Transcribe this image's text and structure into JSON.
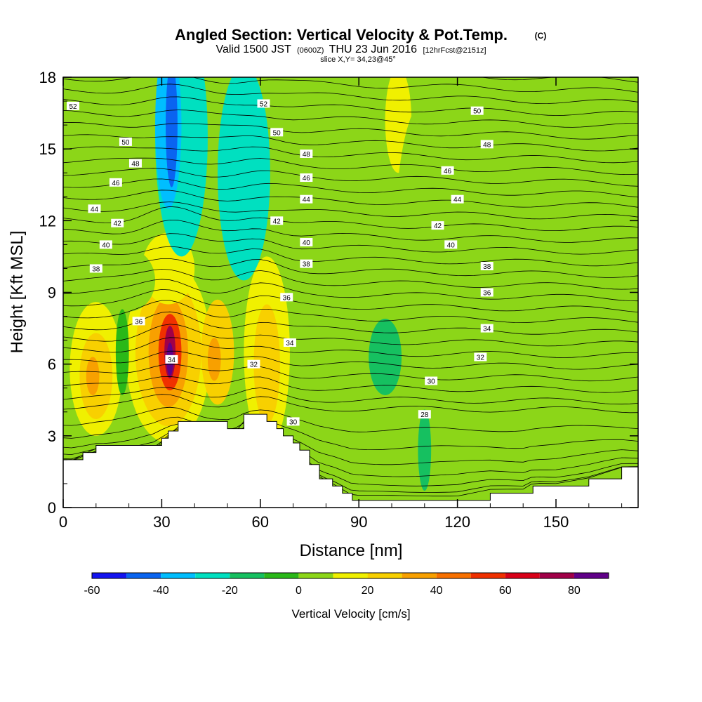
{
  "title": {
    "main": "Angled Section: Vertical Velocity & Pot.Temp.",
    "copyright_mark": "(C)",
    "valid_prefix": "Valid 1500 JST",
    "valid_utc": "(0600Z)",
    "valid_date": "THU 23 Jun 2016",
    "forecast": "[12hrFcst@2151z]",
    "slice": "slice X,Y= 34,23@45°"
  },
  "chart_data": {
    "type": "heatmap",
    "xlabel": "Distance [nm]",
    "ylabel": "Height [Kft MSL]",
    "xlim": [
      0,
      175
    ],
    "ylim": [
      0,
      18
    ],
    "x_ticks": [
      "0",
      "30",
      "60",
      "90",
      "120",
      "150"
    ],
    "y_ticks": [
      "0",
      "3",
      "6",
      "9",
      "12",
      "15",
      "18"
    ],
    "colorbar": {
      "label": "Vertical Velocity [cm/s]",
      "boundaries": [
        -60,
        -50,
        -40,
        -30,
        -20,
        -10,
        0,
        10,
        20,
        30,
        40,
        50,
        60,
        70,
        80,
        90
      ],
      "colors": [
        "#1414f0",
        "#0a64f0",
        "#00beff",
        "#00e0c0",
        "#16c060",
        "#2ab818",
        "#8cd618",
        "#f0f000",
        "#f8d000",
        "#f8a000",
        "#f87000",
        "#f03000",
        "#d80018",
        "#a00048",
        "#600088"
      ],
      "tick_labels": [
        "-60",
        "-40",
        "-20",
        "0",
        "20",
        "40",
        "60",
        "80"
      ],
      "tick_values": [
        -60,
        -40,
        -20,
        0,
        20,
        40,
        60,
        80
      ]
    },
    "background_field_value": 0,
    "velocity_features": [
      {
        "x": 32,
        "y": 6.5,
        "rx": 13,
        "ry": 3.8,
        "value": 12
      },
      {
        "x": 32,
        "y": 6.5,
        "rx": 10,
        "ry": 3.1,
        "value": 25
      },
      {
        "x": 32,
        "y": 6.5,
        "rx": 6,
        "ry": 2.3,
        "value": 35
      },
      {
        "x": 32.5,
        "y": 6.5,
        "rx": 3.5,
        "ry": 1.6,
        "value": 50
      },
      {
        "x": 32.5,
        "y": 6.5,
        "rx": 1.7,
        "ry": 1.1,
        "value": 70
      },
      {
        "x": 32.5,
        "y": 6.2,
        "rx": 1,
        "ry": 0.7,
        "value": 85
      },
      {
        "x": 47,
        "y": 6.5,
        "rx": 5,
        "ry": 2.2,
        "value": 25
      },
      {
        "x": 46,
        "y": 6.2,
        "rx": 2,
        "ry": 0.9,
        "value": 35
      },
      {
        "x": 62,
        "y": 6.5,
        "rx": 7,
        "ry": 4,
        "value": 12
      },
      {
        "x": 62,
        "y": 6.0,
        "rx": 4,
        "ry": 2.5,
        "value": 25
      },
      {
        "x": 10,
        "y": 5.8,
        "rx": 8,
        "ry": 2.8,
        "value": 12
      },
      {
        "x": 10,
        "y": 5.5,
        "rx": 5,
        "ry": 1.8,
        "value": 25
      },
      {
        "x": 9,
        "y": 5.5,
        "rx": 2,
        "ry": 0.8,
        "value": 35
      },
      {
        "x": 32,
        "y": 10,
        "rx": 8,
        "ry": 1.5,
        "value": 12
      },
      {
        "x": 102,
        "y": 16.2,
        "rx": 4,
        "ry": 2.2,
        "value": 12
      },
      {
        "x": 80,
        "y": 13,
        "rx": 4,
        "ry": 4.5,
        "value": 5
      },
      {
        "x": 126,
        "y": 3,
        "rx": 5,
        "ry": 2.5,
        "value": 5
      },
      {
        "x": 110,
        "y": 11,
        "rx": 9,
        "ry": 6,
        "value": 5
      },
      {
        "x": 20,
        "y": 9.5,
        "rx": 8,
        "ry": 1.3,
        "value": 5
      },
      {
        "x": 36,
        "y": 15.5,
        "rx": 8,
        "ry": 5,
        "value": -25
      },
      {
        "x": 32,
        "y": 16,
        "rx": 4,
        "ry": 3.5,
        "value": -35
      },
      {
        "x": 33,
        "y": 16,
        "rx": 1.8,
        "ry": 2.6,
        "value": -45
      },
      {
        "x": 55,
        "y": 14,
        "rx": 8,
        "ry": 4.5,
        "value": -25
      },
      {
        "x": 98,
        "y": 6.3,
        "rx": 5,
        "ry": 1.6,
        "value": -15
      },
      {
        "x": 110,
        "y": 2.4,
        "rx": 2,
        "ry": 1.7,
        "value": -15
      },
      {
        "x": 18,
        "y": 6.5,
        "rx": 2,
        "ry": 1.8,
        "value": -5
      }
    ],
    "terrain_profile": {
      "x": [
        0,
        3,
        6,
        10,
        20,
        28,
        30,
        32,
        35,
        40,
        48,
        50,
        52,
        55,
        58,
        62,
        65,
        67,
        70,
        72,
        75,
        78,
        82,
        85,
        88,
        100,
        110,
        120,
        130,
        140,
        143,
        150,
        160,
        170,
        175
      ],
      "h": [
        2.0,
        2.0,
        2.3,
        2.6,
        2.6,
        2.6,
        2.9,
        3.2,
        3.6,
        3.6,
        3.6,
        3.3,
        3.3,
        3.9,
        3.9,
        3.6,
        3.3,
        3.0,
        2.7,
        2.4,
        1.8,
        1.2,
        0.9,
        0.6,
        0.3,
        0.3,
        0.3,
        0.3,
        0.6,
        0.6,
        0.9,
        0.9,
        1.2,
        1.7,
        1.7
      ]
    },
    "pot_temp_contours": {
      "label_values": [
        28,
        30,
        32,
        34,
        36,
        38,
        40,
        42,
        44,
        46,
        48,
        50,
        52
      ],
      "left_x": [
        0,
        10,
        20,
        30,
        40,
        50,
        60,
        70,
        80,
        90,
        100,
        110,
        120,
        130,
        140,
        150,
        160,
        175
      ],
      "left_y": [
        17.6,
        17.0,
        16.4,
        15.8,
        15.2,
        14.6,
        14.0,
        13.4,
        12.8,
        12.2,
        11.6,
        11.0,
        10.4,
        9.8,
        9.2,
        8.6,
        8.0,
        7.4
      ]
    },
    "contour_labels": [
      {
        "text": "52",
        "x": 3,
        "y": 16.8
      },
      {
        "text": "50",
        "x": 19,
        "y": 15.3
      },
      {
        "text": "48",
        "x": 22,
        "y": 14.4
      },
      {
        "text": "46",
        "x": 16,
        "y": 13.6
      },
      {
        "text": "44",
        "x": 9.5,
        "y": 12.5
      },
      {
        "text": "42",
        "x": 16.5,
        "y": 11.9
      },
      {
        "text": "40",
        "x": 13,
        "y": 11.0
      },
      {
        "text": "38",
        "x": 10,
        "y": 10.0
      },
      {
        "text": "36",
        "x": 23,
        "y": 7.8
      },
      {
        "text": "34",
        "x": 33,
        "y": 6.2
      },
      {
        "text": "52",
        "x": 61,
        "y": 16.9
      },
      {
        "text": "50",
        "x": 65,
        "y": 15.7
      },
      {
        "text": "48",
        "x": 74,
        "y": 14.8
      },
      {
        "text": "46",
        "x": 74,
        "y": 13.8
      },
      {
        "text": "44",
        "x": 74,
        "y": 12.9
      },
      {
        "text": "42",
        "x": 65,
        "y": 12.0
      },
      {
        "text": "40",
        "x": 74,
        "y": 11.1
      },
      {
        "text": "38",
        "x": 74,
        "y": 10.2
      },
      {
        "text": "36",
        "x": 68,
        "y": 8.8
      },
      {
        "text": "34",
        "x": 69,
        "y": 6.9
      },
      {
        "text": "32",
        "x": 58,
        "y": 6.0
      },
      {
        "text": "30",
        "x": 70,
        "y": 3.6
      },
      {
        "text": "28",
        "x": 110,
        "y": 3.9
      },
      {
        "text": "30",
        "x": 112,
        "y": 5.3
      },
      {
        "text": "32",
        "x": 127,
        "y": 6.3
      },
      {
        "text": "34",
        "x": 129,
        "y": 7.5
      },
      {
        "text": "36",
        "x": 129,
        "y": 9.0
      },
      {
        "text": "38",
        "x": 129,
        "y": 10.1
      },
      {
        "text": "40",
        "x": 118,
        "y": 11.0
      },
      {
        "text": "42",
        "x": 114,
        "y": 11.8
      },
      {
        "text": "44",
        "x": 120,
        "y": 12.9
      },
      {
        "text": "46",
        "x": 117,
        "y": 14.1
      },
      {
        "text": "48",
        "x": 129,
        "y": 15.2
      },
      {
        "text": "50",
        "x": 126,
        "y": 16.6
      }
    ]
  }
}
